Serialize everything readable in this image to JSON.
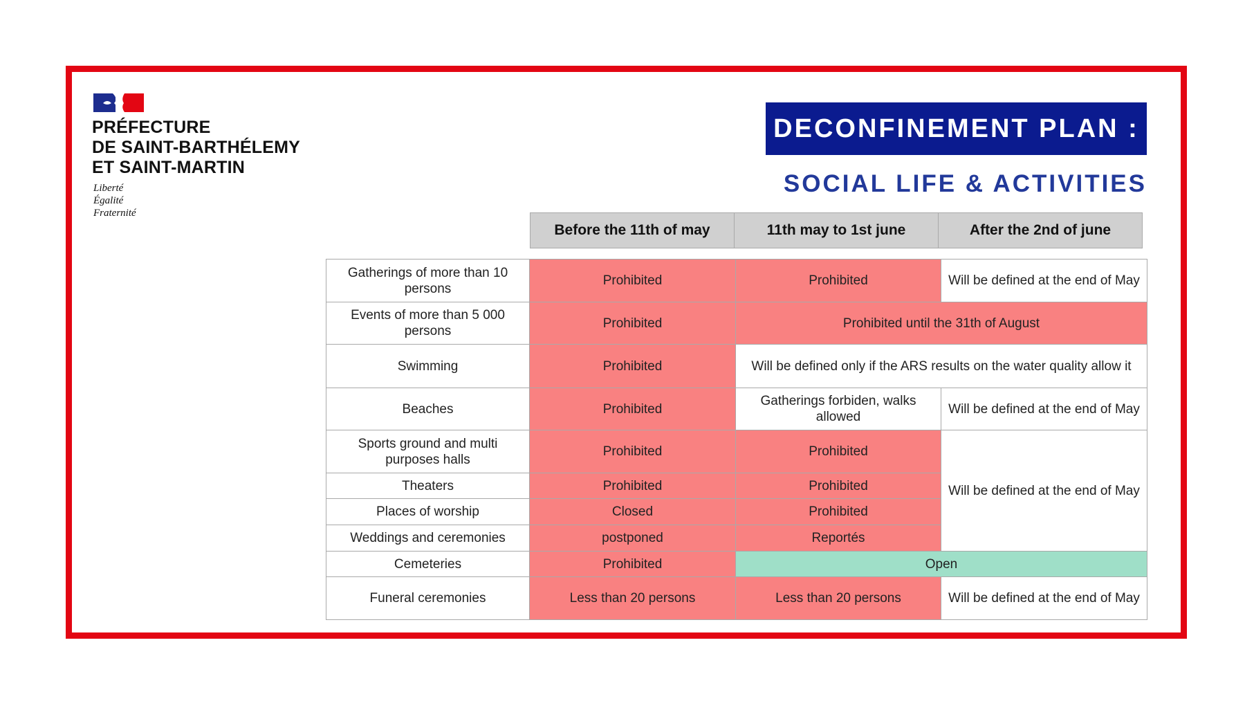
{
  "header": {
    "prefecture_lines": [
      "PRÉFECTURE",
      "DE SAINT-BARTHÉLEMY",
      "ET SAINT-MARTIN"
    ],
    "motto_lines": [
      "Liberté",
      "Égalité",
      "Fraternité"
    ],
    "title": "DECONFINEMENT PLAN :",
    "subtitle": "SOCIAL LIFE & ACTIVITIES"
  },
  "colors": {
    "frame": "#e30613",
    "title_bg": "#0b1b8f",
    "subtitle": "#22399a",
    "prohibited": "#f98181",
    "open": "#9fdfc8",
    "header_bg": "#d0d0d0"
  },
  "table": {
    "columns": [
      "Before the 11th of may",
      "11th may to 1st june",
      "After the 2nd of june"
    ],
    "rows": [
      {
        "label": "Gatherings of more than 10 persons",
        "cells": [
          {
            "text": "Prohibited",
            "tone": "red"
          },
          {
            "text": "Prohibited",
            "tone": "red"
          },
          {
            "text": "Will be defined at the end of May",
            "tone": "white"
          }
        ]
      },
      {
        "label": "Events of more than 5 000 persons",
        "cells": [
          {
            "text": "Prohibited",
            "tone": "red"
          },
          {
            "text": "Prohibited until the 31th of August",
            "tone": "red",
            "colspan": 2
          }
        ]
      },
      {
        "label": "Swimming",
        "cells": [
          {
            "text": "Prohibited",
            "tone": "red"
          },
          {
            "text": "Will be defined only if the ARS results on the water quality allow it",
            "tone": "white",
            "colspan": 2
          }
        ]
      },
      {
        "label": "Beaches",
        "cells": [
          {
            "text": "Prohibited",
            "tone": "red"
          },
          {
            "text": "Gatherings forbiden, walks allowed",
            "tone": "white"
          },
          {
            "text": "Will be defined at the end of May",
            "tone": "white"
          }
        ]
      },
      {
        "label": "Sports ground and multi purposes halls",
        "cells": [
          {
            "text": "Prohibited",
            "tone": "red"
          },
          {
            "text": "Prohibited",
            "tone": "red"
          },
          {
            "text": "Will be defined at the end of May",
            "tone": "white",
            "rowspan": 4
          }
        ]
      },
      {
        "label": "Theaters",
        "cells": [
          {
            "text": "Prohibited",
            "tone": "red"
          },
          {
            "text": "Prohibited",
            "tone": "red"
          }
        ]
      },
      {
        "label": "Places of worship",
        "cells": [
          {
            "text": "Closed",
            "tone": "red"
          },
          {
            "text": "Prohibited",
            "tone": "red"
          }
        ]
      },
      {
        "label": "Weddings and ceremonies",
        "cells": [
          {
            "text": "postponed",
            "tone": "red"
          },
          {
            "text": "Reportés",
            "tone": "red"
          }
        ]
      },
      {
        "label": "Cemeteries",
        "cells": [
          {
            "text": "Prohibited",
            "tone": "red"
          },
          {
            "text": "Open",
            "tone": "green",
            "colspan": 2
          }
        ]
      },
      {
        "label": "Funeral ceremonies",
        "cells": [
          {
            "text": "Less than 20 persons",
            "tone": "red"
          },
          {
            "text": "Less than 20 persons",
            "tone": "red"
          },
          {
            "text": "Will be defined at the end of May",
            "tone": "white"
          }
        ]
      }
    ]
  }
}
